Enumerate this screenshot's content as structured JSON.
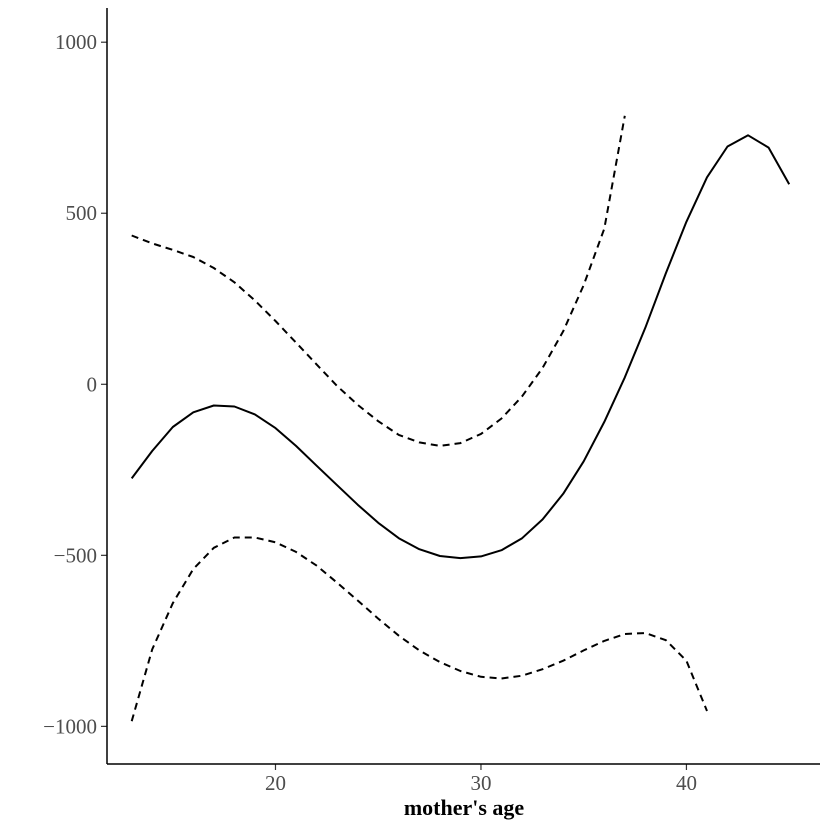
{
  "chart_data": {
    "type": "line",
    "title": "",
    "xlabel": "mother's age",
    "ylabel": "",
    "xlim": [
      11.8,
      46.5
    ],
    "ylim": [
      -1110,
      1100
    ],
    "x_ticks": [
      20,
      30,
      40
    ],
    "x_tick_labels": [
      "20",
      "30",
      "40"
    ],
    "y_ticks": [
      -1000,
      -500,
      0,
      500,
      1000
    ],
    "y_tick_labels": [
      "−1000",
      "−500",
      "0",
      "500",
      "1000"
    ],
    "grid": false,
    "legend": "none",
    "series": [
      {
        "style": "solid",
        "color": "#000000",
        "x": [
          13,
          14,
          15,
          16,
          17,
          18,
          19,
          20,
          21,
          22,
          23,
          24,
          25,
          26,
          27,
          28,
          29,
          30,
          31,
          32,
          33,
          34,
          35,
          36,
          37,
          38,
          39,
          40,
          41,
          42,
          43,
          44,
          45
        ],
        "y": [
          -275,
          -195,
          -125,
          -82,
          -62,
          -65,
          -88,
          -128,
          -180,
          -238,
          -295,
          -352,
          -405,
          -450,
          -482,
          -502,
          -508,
          -503,
          -485,
          -450,
          -395,
          -320,
          -225,
          -110,
          20,
          165,
          325,
          475,
          605,
          695,
          728,
          692,
          585
        ]
      },
      {
        "style": "dashed",
        "color": "#000000",
        "x": [
          13,
          14,
          15,
          16,
          17,
          18,
          19,
          20,
          21,
          22,
          23,
          24,
          25,
          26,
          27,
          28,
          29,
          30,
          31,
          32,
          33,
          34,
          35,
          36,
          37
        ],
        "y": [
          435,
          412,
          393,
          372,
          340,
          298,
          245,
          185,
          122,
          58,
          -5,
          -60,
          -108,
          -148,
          -170,
          -180,
          -172,
          -145,
          -100,
          -35,
          48,
          155,
          290,
          455,
          785
        ]
      },
      {
        "style": "dashed",
        "color": "#000000",
        "x": [
          13,
          14,
          15,
          16,
          17,
          18,
          19,
          20,
          21,
          22,
          23,
          24,
          25,
          26,
          27,
          28,
          29,
          30,
          31,
          32,
          33,
          34,
          35,
          36,
          37,
          38,
          39,
          40,
          41
        ],
        "y": [
          -985,
          -775,
          -640,
          -540,
          -478,
          -448,
          -448,
          -462,
          -490,
          -530,
          -580,
          -632,
          -685,
          -735,
          -778,
          -812,
          -838,
          -855,
          -860,
          -852,
          -833,
          -808,
          -778,
          -750,
          -730,
          -727,
          -748,
          -808,
          -955
        ]
      }
    ]
  }
}
